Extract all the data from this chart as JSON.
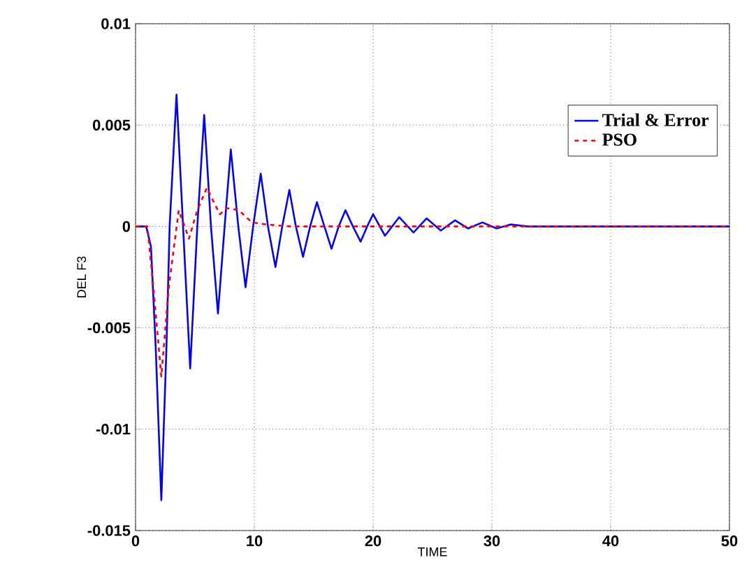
{
  "chart_data": {
    "type": "line",
    "xlabel": "TIME",
    "ylabel": "DEL F3",
    "xlim": [
      0,
      50
    ],
    "ylim": [
      -0.015,
      0.01
    ],
    "xticks": [
      0,
      10,
      20,
      30,
      40,
      50
    ],
    "yticks": [
      -0.015,
      -0.01,
      -0.005,
      0,
      0.005,
      0.01
    ],
    "grid": true,
    "legend": "top right",
    "series": [
      {
        "name": "Trial & Error",
        "color": "#0000ff",
        "line_style": "solid",
        "x": [
          0,
          0.9,
          1.3,
          1.7,
          2.17,
          2.6,
          2.87,
          3.45,
          4.0,
          4.6,
          5.2,
          5.78,
          6.35,
          6.94,
          7.5,
          8.02,
          8.65,
          9.26,
          9.9,
          10.54,
          11.15,
          11.78,
          12.35,
          12.95,
          13.5,
          14.1,
          14.7,
          15.27,
          15.9,
          16.5,
          17.1,
          17.67,
          18.3,
          18.95,
          19.5,
          20.0,
          21.0,
          22.2,
          23.4,
          24.5,
          25.7,
          26.9,
          28.0,
          29.2,
          30.4,
          31.6,
          33,
          35,
          40,
          50
        ],
        "values": [
          0,
          0,
          -0.001,
          -0.006,
          -0.0135,
          -0.006,
          0,
          0.0065,
          0,
          -0.007,
          0,
          0.0055,
          0,
          -0.0043,
          0,
          0.0038,
          0,
          -0.003,
          0,
          0.0026,
          0,
          -0.002,
          0,
          0.0018,
          0,
          -0.0015,
          0,
          0.0012,
          0,
          -0.0011,
          0,
          0.0008,
          0,
          -0.00075,
          0,
          0.0006,
          -0.00046,
          0.00046,
          -0.0003,
          0.0004,
          -0.0002,
          0.0003,
          -0.0001,
          0.0002,
          -0.0001,
          0.0001,
          0,
          0,
          0,
          0
        ]
      },
      {
        "name": "PSO",
        "color": "#ff0000",
        "line_style": "dashed",
        "x": [
          0,
          1.0,
          1.5,
          2.17,
          2.8,
          3.64,
          4.5,
          5.2,
          6.0,
          7.1,
          7.7,
          8.7,
          9.8,
          11,
          13,
          20,
          50
        ],
        "values": [
          0,
          0,
          -0.003,
          -0.0074,
          -0.003,
          0.0008,
          -0.0006,
          0.0008,
          0.0019,
          0.0006,
          0.0009,
          0.0008,
          0.0002,
          0.0001,
          0,
          0,
          0
        ]
      }
    ]
  }
}
